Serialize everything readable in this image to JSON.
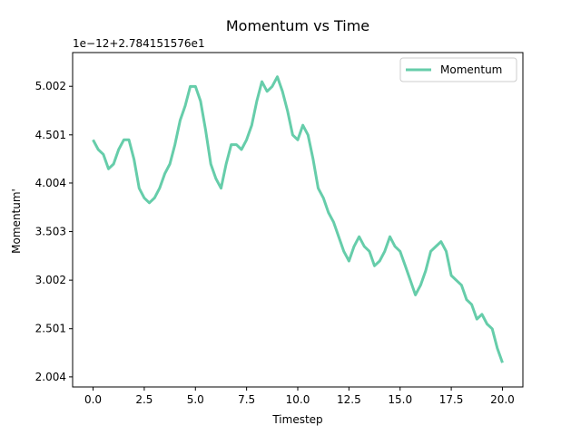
{
  "chart_data": {
    "type": "line",
    "title": "Momentum vs Time",
    "xlabel": "Timestep",
    "ylabel": "Momentum'",
    "offset_text": "1e−12+2.784151576e1",
    "xlim": [
      -1.0,
      21.0
    ],
    "ylim": [
      1.9,
      5.35
    ],
    "xticks": [
      {
        "value": 0.0,
        "label": "0.0"
      },
      {
        "value": 2.5,
        "label": "2.5"
      },
      {
        "value": 5.0,
        "label": "5.0"
      },
      {
        "value": 7.5,
        "label": "7.5"
      },
      {
        "value": 10.0,
        "label": "10.0"
      },
      {
        "value": 12.5,
        "label": "12.5"
      },
      {
        "value": 15.0,
        "label": "15.0"
      },
      {
        "value": 17.5,
        "label": "17.5"
      },
      {
        "value": 20.0,
        "label": "20.0"
      }
    ],
    "yticks": [
      {
        "value": 2.004,
        "label": "2.004"
      },
      {
        "value": 2.501,
        "label": "2.501"
      },
      {
        "value": 3.002,
        "label": "3.002"
      },
      {
        "value": 3.503,
        "label": "3.503"
      },
      {
        "value": 4.004,
        "label": "4.004"
      },
      {
        "value": 4.501,
        "label": "4.501"
      },
      {
        "value": 5.002,
        "label": "5.002"
      }
    ],
    "grid": false,
    "legend_position": "top-right",
    "series": [
      {
        "name": "Momentum",
        "color": "#66cdaa",
        "x": [
          0.0,
          0.25,
          0.5,
          0.75,
          1.0,
          1.25,
          1.5,
          1.75,
          2.0,
          2.25,
          2.5,
          2.75,
          3.0,
          3.25,
          3.5,
          3.75,
          4.0,
          4.25,
          4.5,
          4.75,
          5.0,
          5.25,
          5.5,
          5.75,
          6.0,
          6.25,
          6.5,
          6.75,
          7.0,
          7.25,
          7.5,
          7.75,
          8.0,
          8.25,
          8.5,
          8.75,
          9.0,
          9.25,
          9.5,
          9.75,
          10.0,
          10.25,
          10.5,
          10.75,
          11.0,
          11.25,
          11.5,
          11.75,
          12.0,
          12.25,
          12.5,
          12.75,
          13.0,
          13.25,
          13.5,
          13.75,
          14.0,
          14.25,
          14.5,
          14.75,
          15.0,
          15.25,
          15.5,
          15.75,
          16.0,
          16.25,
          16.5,
          16.75,
          17.0,
          17.25,
          17.5,
          17.75,
          18.0,
          18.25,
          18.5,
          18.75,
          19.0,
          19.25,
          19.5,
          19.75,
          20.0
        ],
        "y": [
          4.45,
          4.35,
          4.3,
          4.15,
          4.2,
          4.35,
          4.45,
          4.45,
          4.25,
          3.95,
          3.85,
          3.8,
          3.85,
          3.95,
          4.1,
          4.2,
          4.4,
          4.65,
          4.8,
          5.0,
          5.0,
          4.85,
          4.55,
          4.2,
          4.05,
          3.95,
          4.2,
          4.4,
          4.4,
          4.35,
          4.45,
          4.6,
          4.85,
          5.05,
          4.95,
          5.0,
          5.1,
          4.95,
          4.75,
          4.5,
          4.45,
          4.6,
          4.5,
          4.25,
          3.95,
          3.85,
          3.7,
          3.6,
          3.45,
          3.3,
          3.2,
          3.35,
          3.45,
          3.35,
          3.3,
          3.15,
          3.2,
          3.3,
          3.45,
          3.35,
          3.3,
          3.15,
          3.0,
          2.85,
          2.95,
          3.1,
          3.3,
          3.35,
          3.4,
          3.3,
          3.05,
          3.0,
          2.95,
          2.8,
          2.75,
          2.6,
          2.65,
          2.55,
          2.5,
          2.3,
          2.15
        ]
      }
    ]
  }
}
